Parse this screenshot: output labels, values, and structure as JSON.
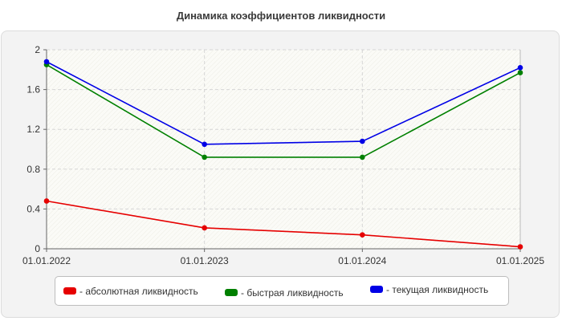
{
  "chart_data": {
    "type": "line",
    "title": "Динамика коэффициентов ликвидности",
    "categories": [
      "01.01.2022",
      "01.01.2023",
      "01.01.2024",
      "01.01.2025"
    ],
    "ylim": [
      0,
      2
    ],
    "yticks": [
      "0",
      "0.4",
      "0.8",
      "1.2",
      "1.6",
      "2"
    ],
    "yticks_values": [
      0,
      0.4,
      0.8,
      1.2,
      1.6,
      2.0
    ],
    "grid": true,
    "legend_position": "bottom",
    "series": [
      {
        "name": "- абсолютная ликвидность",
        "color": "#e60000",
        "values": [
          0.48,
          0.21,
          0.14,
          0.02
        ]
      },
      {
        "name": "- быстрая ликвидность",
        "color": "#008000",
        "values": [
          1.85,
          0.92,
          0.92,
          1.77
        ]
      },
      {
        "name": "- текущая ликвидность",
        "color": "#0000e6",
        "values": [
          1.88,
          1.05,
          1.08,
          1.82
        ]
      }
    ]
  }
}
